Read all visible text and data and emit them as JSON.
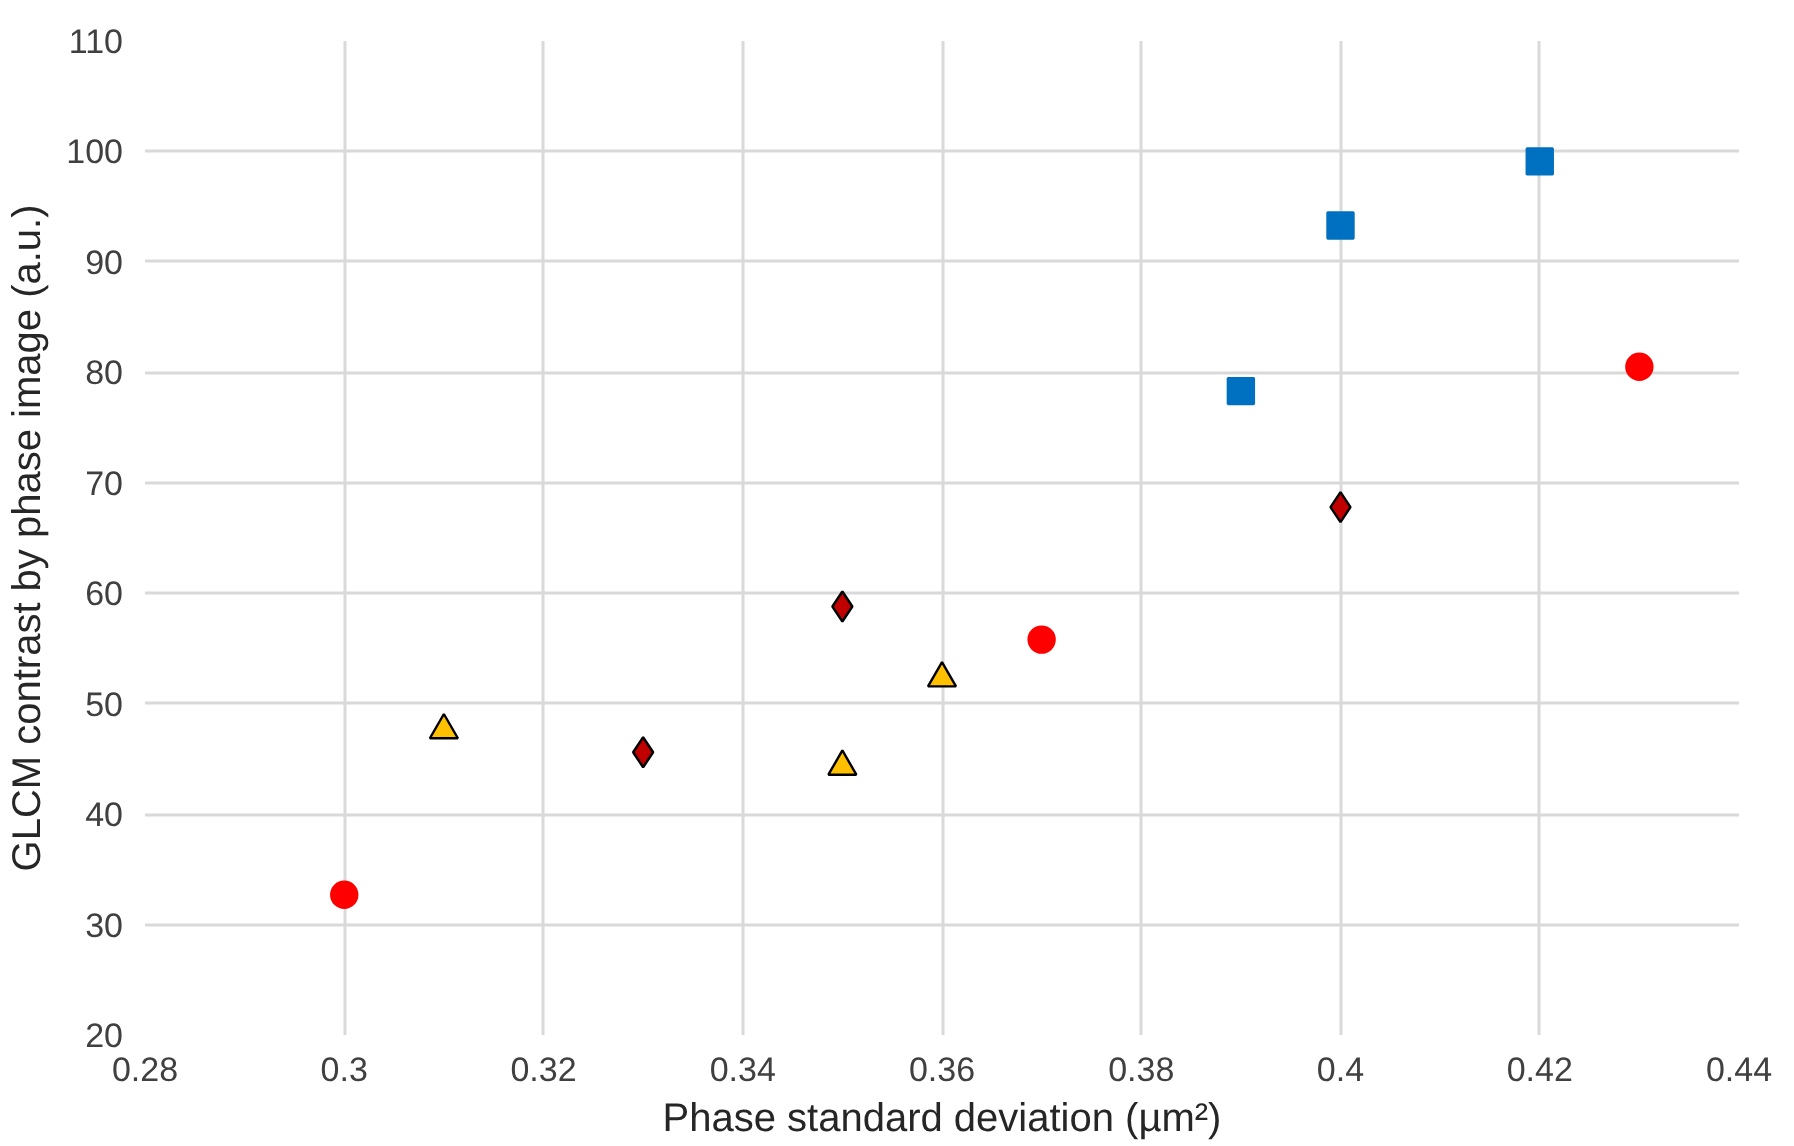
{
  "chart_data": {
    "type": "scatter",
    "xlabel": "Phase standard deviation (µm²)",
    "ylabel": "GLCM contrast by phase image (a.u.)",
    "xlim": [
      0.28,
      0.44
    ],
    "xticks": [
      0.28,
      0.3,
      0.32,
      0.34,
      0.36,
      0.38,
      0.4,
      0.42,
      0.44
    ],
    "ylim": [
      20,
      110
    ],
    "yticks": [
      20,
      30,
      40,
      50,
      60,
      70,
      80,
      90,
      100,
      110
    ],
    "grid": true,
    "series": [
      {
        "color": "#ff0000",
        "marker": "circle",
        "x": [
          0.3,
          0.37,
          0.43
        ],
        "values": [
          32.7,
          55.8,
          80.5
        ]
      },
      {
        "color": "#0070c0",
        "marker": "square",
        "x": [
          0.39,
          0.4,
          0.42
        ],
        "values": [
          78.3,
          93.3,
          99.1
        ]
      },
      {
        "color": "#c00000",
        "marker": "diamond",
        "x": [
          0.33,
          0.35,
          0.4
        ],
        "values": [
          45.6,
          58.8,
          67.8
        ]
      },
      {
        "color": "#ffc000",
        "marker": "triangle",
        "x": [
          0.31,
          0.35,
          0.36
        ],
        "values": [
          47.6,
          44.3,
          52.3
        ]
      }
    ]
  }
}
